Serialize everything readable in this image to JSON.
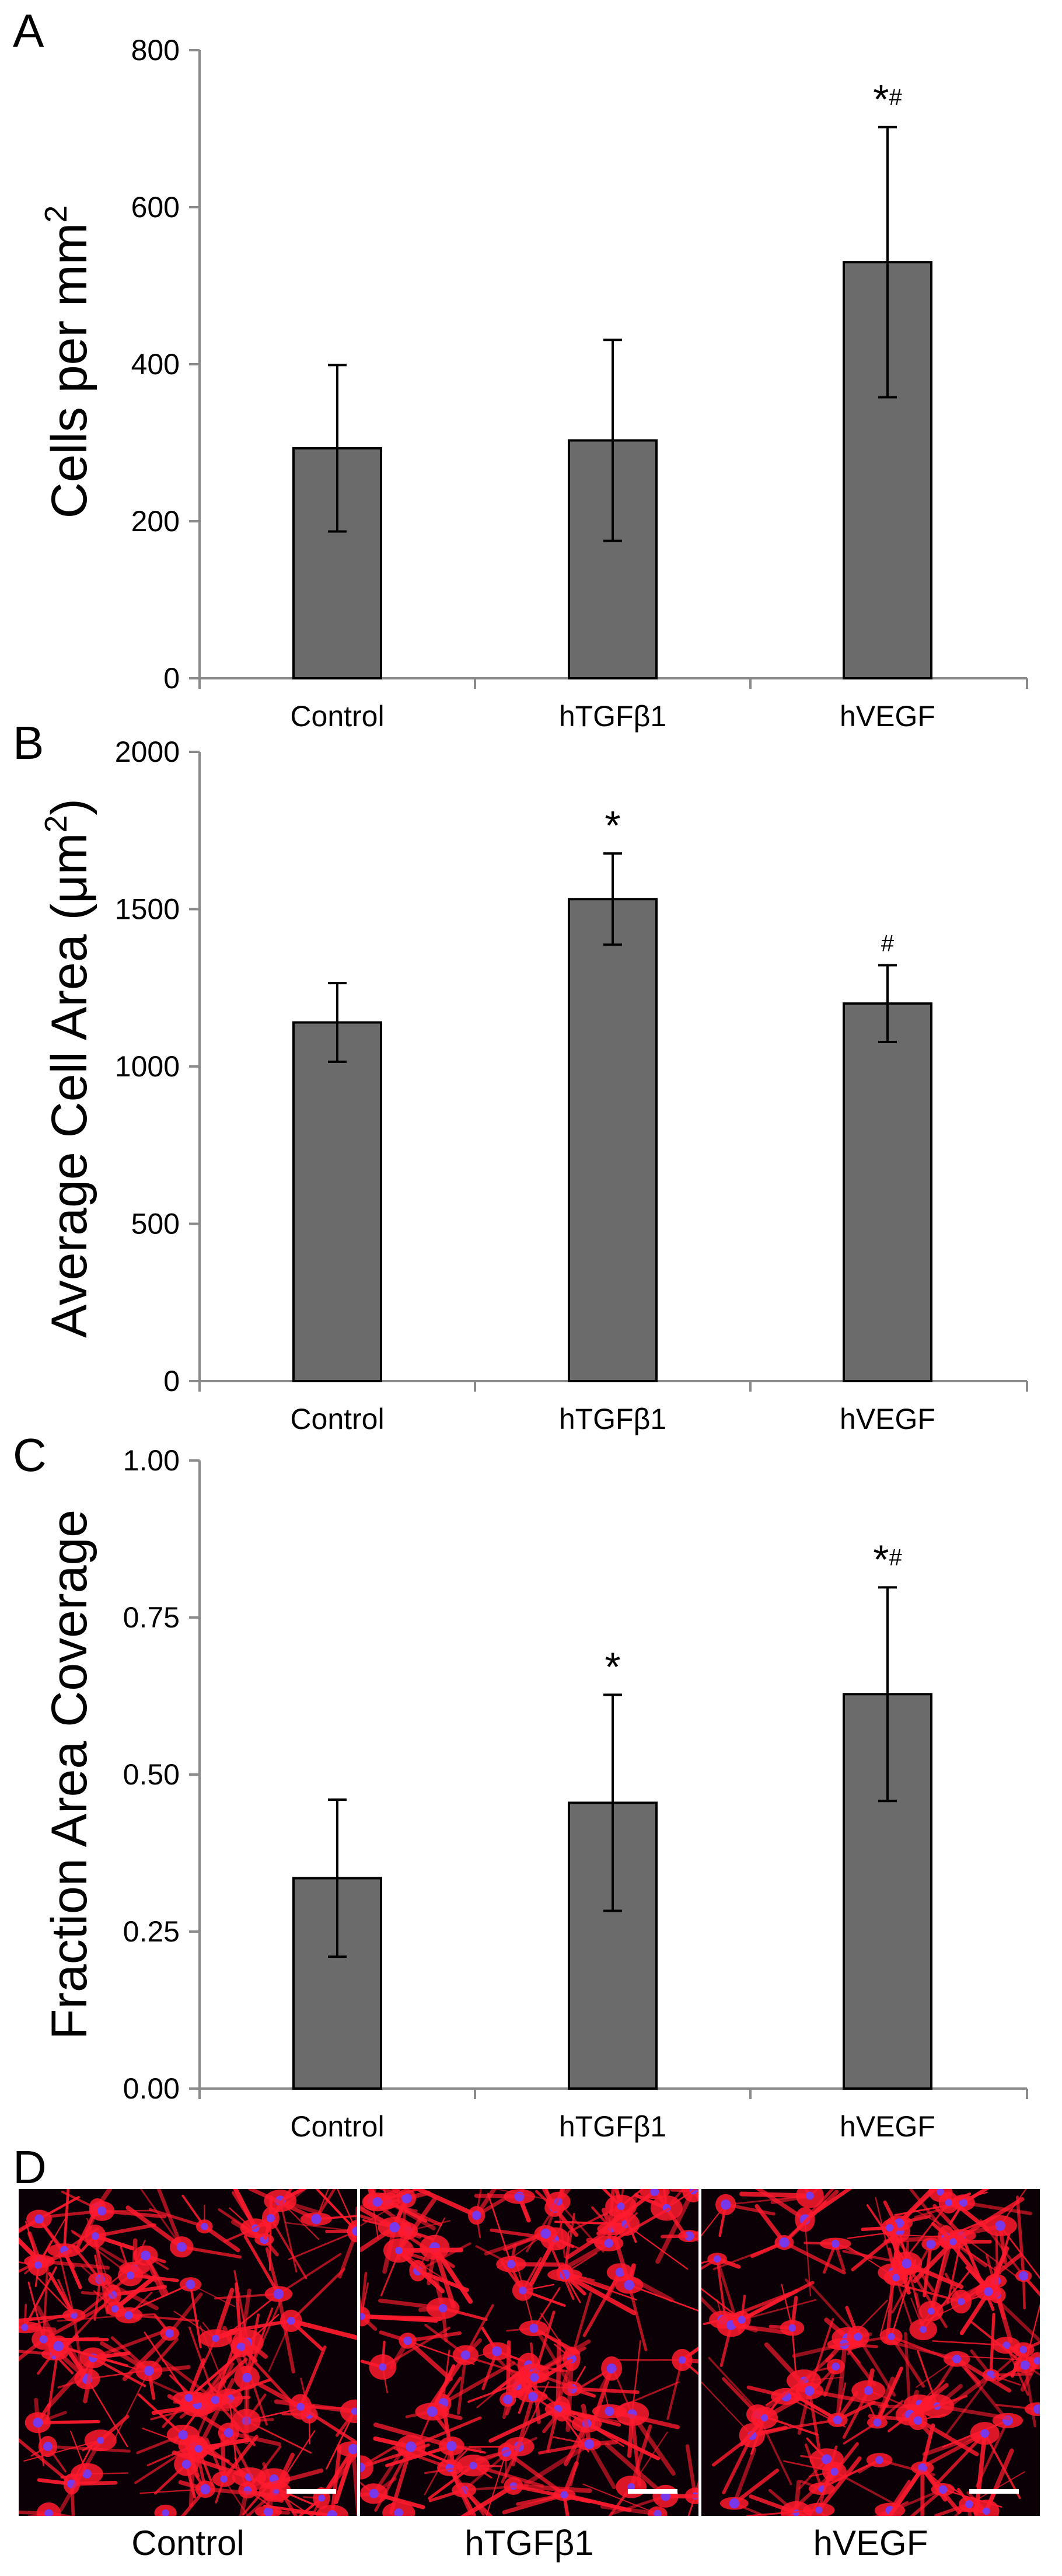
{
  "chart_data": [
    {
      "panel": "A",
      "type": "bar",
      "categories": [
        "Control",
        "hTGFβ1",
        "hVEGF"
      ],
      "values": [
        293,
        303,
        530
      ],
      "errors": [
        106,
        128,
        172
      ],
      "ylabel": "Cells per mm",
      "ylabel_superscript": "2",
      "ylim": [
        0,
        800
      ],
      "yticks": [
        0,
        200,
        400,
        600,
        800
      ],
      "ytick_labels": [
        "0",
        "200",
        "400",
        "600",
        "800"
      ],
      "annotations": [
        null,
        null,
        {
          "star": "*",
          "hash": "#"
        }
      ]
    },
    {
      "panel": "B",
      "type": "bar",
      "categories": [
        "Control",
        "hTGFβ1",
        "hVEGF"
      ],
      "values": [
        1140,
        1532,
        1200
      ],
      "errors": [
        125,
        145,
        122
      ],
      "ylabel": "Average Cell Area (μm",
      "ylabel_superscript": "2",
      "ylabel_suffix": ")",
      "ylim": [
        0,
        2000
      ],
      "yticks": [
        0,
        500,
        1000,
        1500,
        2000
      ],
      "ytick_labels": [
        "0",
        "500",
        "1000",
        "1500",
        "2000"
      ],
      "annotations": [
        null,
        {
          "star": "*",
          "hash": ""
        },
        {
          "star": "",
          "hash": "#"
        }
      ]
    },
    {
      "panel": "C",
      "type": "bar",
      "categories": [
        "Control",
        "hTGFβ1",
        "hVEGF"
      ],
      "values": [
        0.335,
        0.455,
        0.628
      ],
      "errors": [
        0.125,
        0.172,
        0.17
      ],
      "ylabel": "Fraction Area Coverage",
      "ylabel_superscript": "",
      "ylim": [
        0,
        1
      ],
      "yticks": [
        0,
        0.25,
        0.5,
        0.75,
        1
      ],
      "ytick_labels": [
        "0.00",
        "0.25",
        "0.50",
        "0.75",
        "1.00"
      ],
      "annotations": [
        null,
        {
          "star": "*",
          "hash": ""
        },
        {
          "star": "*",
          "hash": "#"
        }
      ]
    }
  ],
  "panel_d": {
    "letter": "D",
    "images": [
      {
        "caption": "Control",
        "seed": 11
      },
      {
        "caption": "hTGFβ1",
        "seed": 23
      },
      {
        "caption": "hVEGF",
        "seed": 37
      }
    ]
  },
  "colors": {
    "bar": "#6b6b6b",
    "stain_actin": "#ff1a2e",
    "stain_nuclei": "#6a3cff"
  }
}
